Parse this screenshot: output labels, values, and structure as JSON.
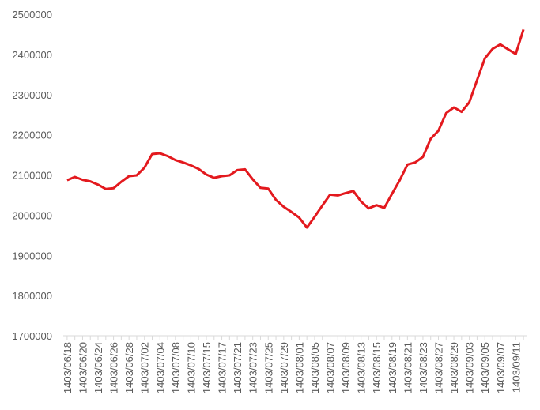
{
  "chart_data": {
    "type": "line",
    "categories": [
      "1403/06/18",
      null,
      "1403/06/20",
      null,
      "1403/06/24",
      null,
      "1403/06/26",
      null,
      "1403/06/28",
      null,
      "1403/07/02",
      null,
      "1403/07/04",
      null,
      "1403/07/08",
      null,
      "1403/07/10",
      null,
      "1403/07/15",
      null,
      "1403/07/17",
      null,
      "1403/07/21",
      null,
      "1403/07/23",
      null,
      "1403/07/25",
      null,
      "1403/07/29",
      null,
      "1403/08/01",
      null,
      "1403/08/05",
      null,
      "1403/08/07",
      null,
      "1403/08/09",
      null,
      "1403/08/13",
      null,
      "1403/08/15",
      null,
      "1403/08/19",
      null,
      "1403/08/21",
      null,
      "1403/08/23",
      null,
      "1403/08/27",
      null,
      "1403/08/29",
      null,
      "1403/09/03",
      null,
      "1403/09/05",
      null,
      "1403/09/07",
      null,
      "1403/09/11",
      null
    ],
    "series": [
      {
        "color": "#e3191e",
        "values": [
          2087000,
          2095000,
          2088000,
          2084000,
          2076000,
          2065000,
          2067000,
          2083000,
          2097000,
          2099000,
          2118000,
          2152000,
          2154000,
          2147000,
          2137000,
          2131000,
          2124000,
          2115000,
          2101000,
          2093000,
          2097000,
          2099000,
          2112000,
          2114000,
          2089000,
          2068000,
          2066000,
          2038000,
          2021000,
          2008000,
          1994000,
          1969000,
          1996000,
          2024000,
          2051000,
          2049000,
          2055000,
          2060000,
          2034000,
          2017000,
          2025000,
          2018000,
          2053000,
          2087000,
          2126000,
          2131000,
          2145000,
          2190000,
          2210000,
          2254000,
          2268000,
          2257000,
          2281000,
          2336000,
          2390000,
          2414000,
          2425000,
          2413000,
          2401000,
          2462000
        ]
      }
    ],
    "ylim": [
      1700000,
      2500000
    ],
    "yticks": [
      1700000,
      1800000,
      1900000,
      2000000,
      2100000,
      2200000,
      2300000,
      2400000,
      2500000
    ],
    "grid": false
  }
}
